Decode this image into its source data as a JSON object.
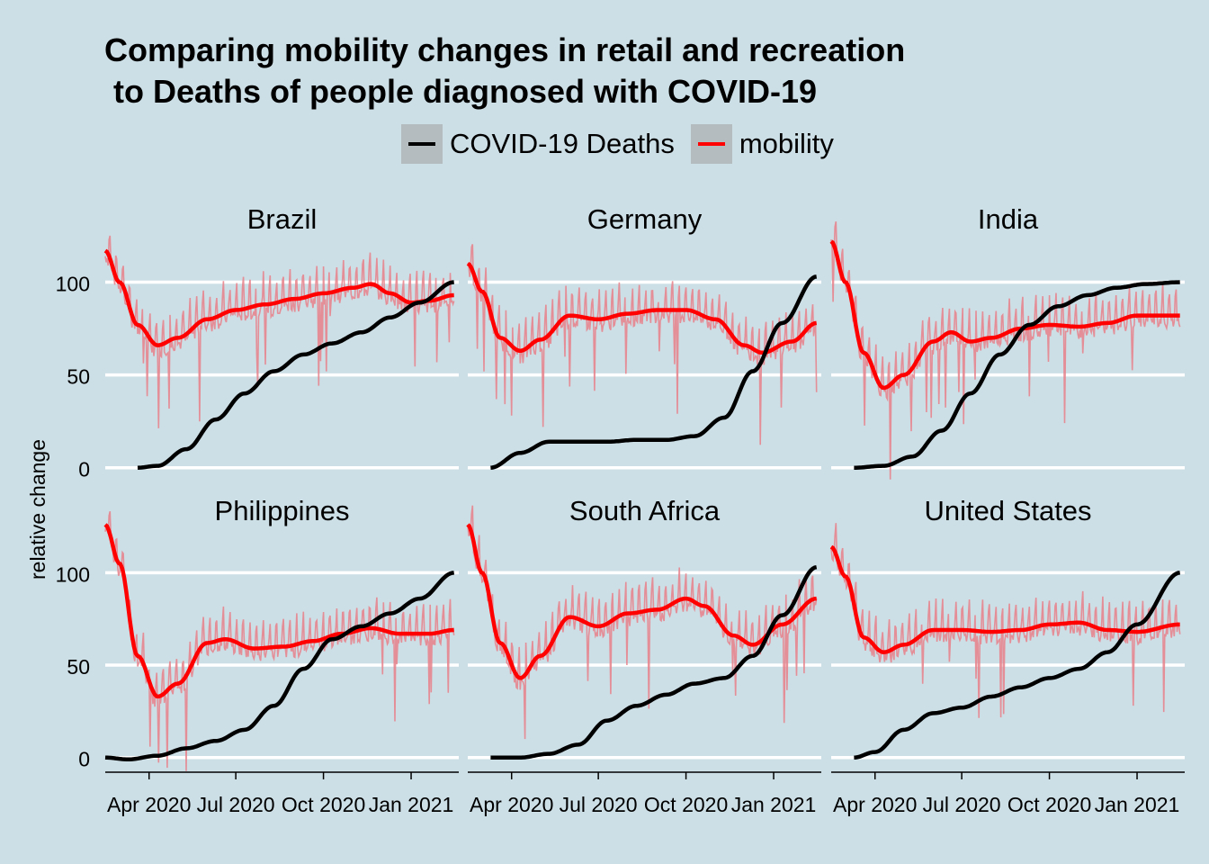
{
  "title_lines": [
    "Comparing mobility changes in retail and recreation",
    " to Deaths of people diagnosed with COVID-19"
  ],
  "legend": [
    {
      "label": "COVID-19 Deaths",
      "color": "#000000",
      "icon": "black-line"
    },
    {
      "label": "mobility",
      "color": "#ff0000",
      "icon": "red-line"
    }
  ],
  "colors": {
    "background": "#cddfe6",
    "mobility_raw": "#e8808a",
    "mobility_smooth": "#ff0000",
    "deaths": "#000000",
    "grid": "#ffffff",
    "band": "#b5bcbf"
  },
  "chart_data": {
    "type": "line",
    "facets": [
      "Brazil",
      "Germany",
      "India",
      "Philippines",
      "South Africa",
      "United States"
    ],
    "ylabel": "relative change",
    "xlabel": "",
    "y_ticks": [
      0,
      50,
      100
    ],
    "x_ticks": [
      "Apr 2020",
      "Jul 2020",
      "Oct 2020",
      "Jan 2021"
    ],
    "x_range": [
      "2020-02-15",
      "2021-02-20"
    ],
    "y_range": [
      -5,
      125
    ],
    "grid": true,
    "legend_position": "top",
    "panels": [
      {
        "name": "Brazil",
        "mobility_smooth": [
          [
            "2020-02-15",
            117
          ],
          [
            "2020-03-01",
            100
          ],
          [
            "2020-03-20",
            77
          ],
          [
            "2020-04-10",
            66
          ],
          [
            "2020-05-01",
            70
          ],
          [
            "2020-06-01",
            80
          ],
          [
            "2020-07-01",
            85
          ],
          [
            "2020-08-01",
            88
          ],
          [
            "2020-09-01",
            91
          ],
          [
            "2020-10-01",
            94
          ],
          [
            "2020-11-01",
            97
          ],
          [
            "2020-11-20",
            99
          ],
          [
            "2020-12-10",
            94
          ],
          [
            "2021-01-01",
            89
          ],
          [
            "2021-01-20",
            90
          ],
          [
            "2021-02-15",
            93
          ]
        ],
        "deaths": [
          [
            "2020-03-20",
            0
          ],
          [
            "2020-04-10",
            1
          ],
          [
            "2020-05-10",
            10
          ],
          [
            "2020-06-10",
            26
          ],
          [
            "2020-07-10",
            40
          ],
          [
            "2020-08-10",
            52
          ],
          [
            "2020-09-10",
            61
          ],
          [
            "2020-10-10",
            67
          ],
          [
            "2020-11-10",
            73
          ],
          [
            "2020-12-10",
            81
          ],
          [
            "2021-01-10",
            89
          ],
          [
            "2021-02-15",
            100
          ]
        ]
      },
      {
        "name": "Germany",
        "mobility_smooth": [
          [
            "2020-02-15",
            110
          ],
          [
            "2020-03-01",
            95
          ],
          [
            "2020-03-20",
            70
          ],
          [
            "2020-04-10",
            63
          ],
          [
            "2020-05-01",
            69
          ],
          [
            "2020-06-01",
            82
          ],
          [
            "2020-07-01",
            80
          ],
          [
            "2020-08-01",
            83
          ],
          [
            "2020-09-01",
            85
          ],
          [
            "2020-10-01",
            85
          ],
          [
            "2020-11-01",
            80
          ],
          [
            "2020-12-01",
            66
          ],
          [
            "2020-12-20",
            62
          ],
          [
            "2021-01-20",
            68
          ],
          [
            "2021-02-15",
            78
          ]
        ],
        "deaths": [
          [
            "2020-03-10",
            0
          ],
          [
            "2020-04-10",
            8
          ],
          [
            "2020-05-10",
            14
          ],
          [
            "2020-06-10",
            14
          ],
          [
            "2020-07-10",
            14
          ],
          [
            "2020-08-10",
            15
          ],
          [
            "2020-09-10",
            15
          ],
          [
            "2020-10-10",
            17
          ],
          [
            "2020-11-10",
            27
          ],
          [
            "2020-12-10",
            52
          ],
          [
            "2021-01-10",
            78
          ],
          [
            "2021-02-15",
            103
          ]
        ]
      },
      {
        "name": "India",
        "mobility_smooth": [
          [
            "2020-02-15",
            122
          ],
          [
            "2020-03-01",
            100
          ],
          [
            "2020-03-20",
            62
          ],
          [
            "2020-04-10",
            43
          ],
          [
            "2020-05-01",
            50
          ],
          [
            "2020-06-01",
            68
          ],
          [
            "2020-06-20",
            73
          ],
          [
            "2020-07-10",
            68
          ],
          [
            "2020-08-01",
            70
          ],
          [
            "2020-09-01",
            75
          ],
          [
            "2020-10-01",
            77
          ],
          [
            "2020-11-01",
            76
          ],
          [
            "2020-12-01",
            78
          ],
          [
            "2021-01-01",
            82
          ],
          [
            "2021-02-15",
            82
          ]
        ],
        "deaths": [
          [
            "2020-03-10",
            0
          ],
          [
            "2020-04-10",
            1
          ],
          [
            "2020-05-10",
            6
          ],
          [
            "2020-06-10",
            20
          ],
          [
            "2020-07-10",
            40
          ],
          [
            "2020-08-10",
            61
          ],
          [
            "2020-09-10",
            77
          ],
          [
            "2020-10-10",
            87
          ],
          [
            "2020-11-10",
            93
          ],
          [
            "2020-12-10",
            97
          ],
          [
            "2021-01-10",
            99
          ],
          [
            "2021-02-15",
            100
          ]
        ]
      },
      {
        "name": "Philippines",
        "mobility_smooth": [
          [
            "2020-02-15",
            126
          ],
          [
            "2020-03-01",
            105
          ],
          [
            "2020-03-20",
            55
          ],
          [
            "2020-04-10",
            33
          ],
          [
            "2020-05-01",
            40
          ],
          [
            "2020-06-01",
            62
          ],
          [
            "2020-06-20",
            64
          ],
          [
            "2020-07-20",
            59
          ],
          [
            "2020-08-20",
            60
          ],
          [
            "2020-09-20",
            63
          ],
          [
            "2020-10-20",
            67
          ],
          [
            "2020-11-20",
            70
          ],
          [
            "2020-12-20",
            67
          ],
          [
            "2021-01-20",
            67
          ],
          [
            "2021-02-15",
            69
          ]
        ],
        "deaths": [
          [
            "2020-02-15",
            0
          ],
          [
            "2020-03-10",
            -1
          ],
          [
            "2020-04-10",
            1
          ],
          [
            "2020-05-10",
            5
          ],
          [
            "2020-06-10",
            9
          ],
          [
            "2020-07-10",
            15
          ],
          [
            "2020-08-10",
            28
          ],
          [
            "2020-09-10",
            48
          ],
          [
            "2020-10-10",
            64
          ],
          [
            "2020-11-10",
            71
          ],
          [
            "2020-12-10",
            78
          ],
          [
            "2021-01-10",
            86
          ],
          [
            "2021-02-15",
            100
          ]
        ]
      },
      {
        "name": "South Africa",
        "mobility_smooth": [
          [
            "2020-02-15",
            126
          ],
          [
            "2020-03-01",
            100
          ],
          [
            "2020-03-20",
            62
          ],
          [
            "2020-04-10",
            43
          ],
          [
            "2020-05-01",
            55
          ],
          [
            "2020-06-01",
            76
          ],
          [
            "2020-07-01",
            71
          ],
          [
            "2020-08-01",
            78
          ],
          [
            "2020-09-01",
            80
          ],
          [
            "2020-10-01",
            86
          ],
          [
            "2020-10-20",
            82
          ],
          [
            "2020-11-20",
            66
          ],
          [
            "2020-12-10",
            61
          ],
          [
            "2021-01-10",
            72
          ],
          [
            "2021-02-15",
            86
          ]
        ],
        "deaths": [
          [
            "2020-03-10",
            0
          ],
          [
            "2020-04-10",
            0
          ],
          [
            "2020-05-10",
            2
          ],
          [
            "2020-06-10",
            7
          ],
          [
            "2020-07-10",
            20
          ],
          [
            "2020-08-10",
            28
          ],
          [
            "2020-09-10",
            34
          ],
          [
            "2020-10-10",
            40
          ],
          [
            "2020-11-10",
            43
          ],
          [
            "2020-12-10",
            55
          ],
          [
            "2021-01-10",
            77
          ],
          [
            "2021-02-15",
            103
          ]
        ]
      },
      {
        "name": "United States",
        "mobility_smooth": [
          [
            "2020-02-15",
            114
          ],
          [
            "2020-03-01",
            98
          ],
          [
            "2020-03-20",
            65
          ],
          [
            "2020-04-10",
            57
          ],
          [
            "2020-05-01",
            61
          ],
          [
            "2020-06-01",
            69
          ],
          [
            "2020-07-01",
            69
          ],
          [
            "2020-08-01",
            68
          ],
          [
            "2020-09-01",
            69
          ],
          [
            "2020-10-01",
            72
          ],
          [
            "2020-11-01",
            73
          ],
          [
            "2020-12-01",
            69
          ],
          [
            "2021-01-01",
            68
          ],
          [
            "2021-02-15",
            72
          ]
        ],
        "deaths": [
          [
            "2020-03-10",
            0
          ],
          [
            "2020-04-01",
            3
          ],
          [
            "2020-05-01",
            15
          ],
          [
            "2020-06-01",
            24
          ],
          [
            "2020-07-01",
            27
          ],
          [
            "2020-08-01",
            33
          ],
          [
            "2020-09-01",
            38
          ],
          [
            "2020-10-01",
            43
          ],
          [
            "2020-11-01",
            48
          ],
          [
            "2020-12-01",
            57
          ],
          [
            "2021-01-01",
            72
          ],
          [
            "2021-02-15",
            100
          ]
        ]
      }
    ]
  }
}
